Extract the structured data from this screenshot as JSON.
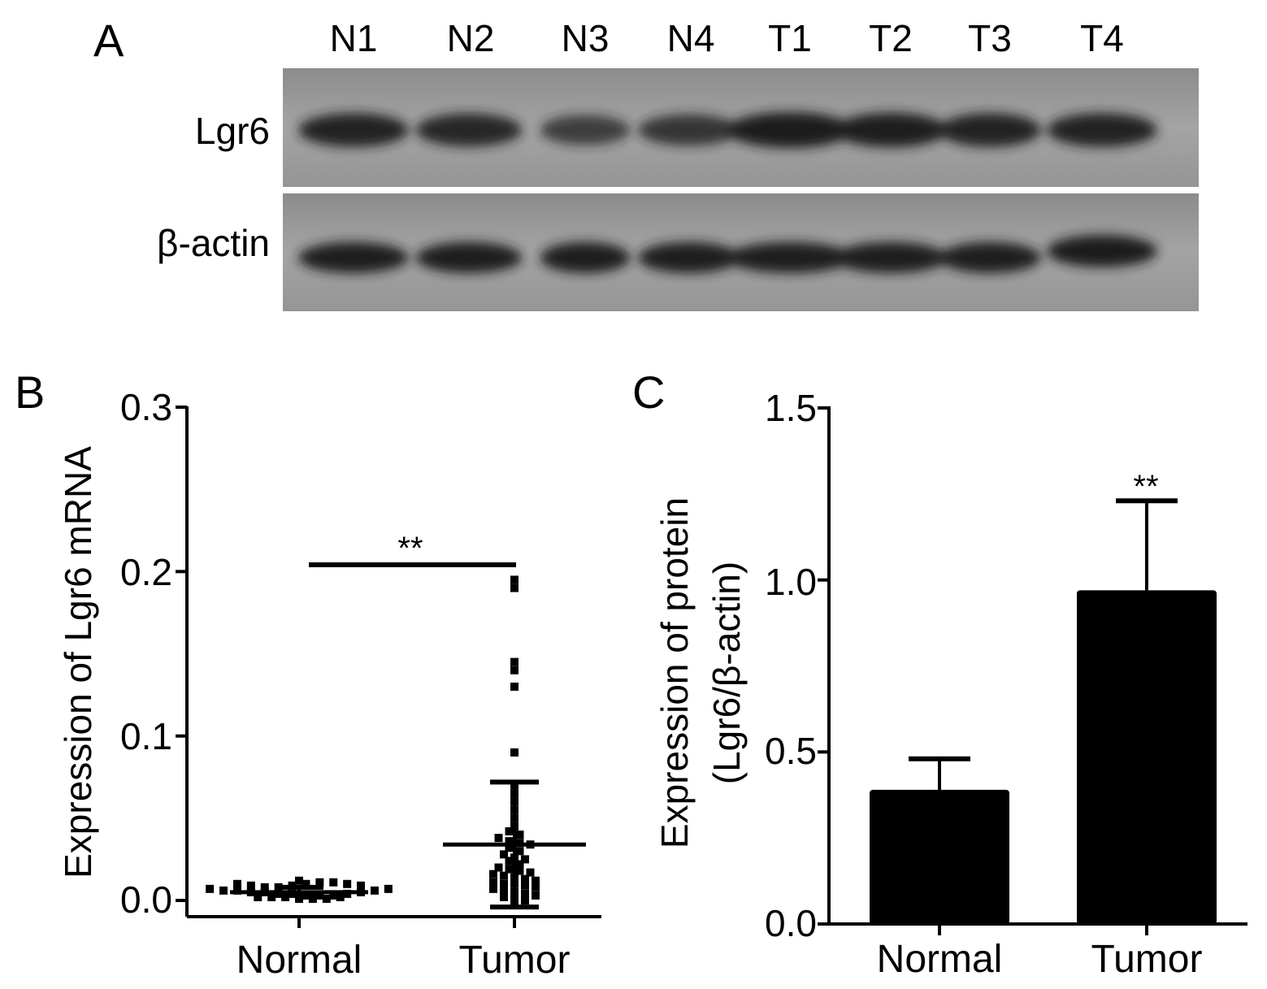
{
  "panel_a": {
    "letter": "A",
    "lanes": [
      "N1",
      "N2",
      "N3",
      "N4",
      "T1",
      "T2",
      "T3",
      "T4"
    ],
    "rows": [
      {
        "label": "Lgr6",
        "band_intensity": [
          0.85,
          0.8,
          0.55,
          0.65,
          1.0,
          0.9,
          0.85,
          0.85
        ]
      },
      {
        "label": "β-actin",
        "band_intensity": [
          0.9,
          0.9,
          0.9,
          0.9,
          0.9,
          0.9,
          0.9,
          1.0
        ]
      }
    ],
    "colors": {
      "membrane": "#9a9a9a",
      "band": "#1e1e1e"
    }
  },
  "panel_b": {
    "letter": "B",
    "significance": "**"
  },
  "panel_c": {
    "letter": "C",
    "significance": "**"
  },
  "chart_data": [
    {
      "type": "scatter",
      "panel": "B",
      "ylabel": "Expression of Lgr6 mRNA",
      "categories": [
        "Normal",
        "Tumor"
      ],
      "ylim": [
        0.0,
        0.3
      ],
      "yticks": [
        "0.0",
        "0.1",
        "0.2",
        "0.3"
      ],
      "groups": [
        {
          "name": "Normal",
          "mean": 0.005,
          "sd_low": 0.004,
          "sd_high": 0.008,
          "points": [
            0.01,
            0.009,
            0.008,
            0.007,
            0.006,
            0.006,
            0.005,
            0.005,
            0.004,
            0.004,
            0.003,
            0.003,
            0.002,
            0.002,
            0.002,
            0.001,
            0.001,
            0.001,
            0.002,
            0.003,
            0.004,
            0.005,
            0.006,
            0.007,
            0.008,
            0.009,
            0.01,
            0.011,
            0.012,
            0.011,
            0.01,
            0.009
          ]
        },
        {
          "name": "Tumor",
          "mean": 0.034,
          "sd_low": -0.004,
          "sd_high": 0.072,
          "points": [
            0.195,
            0.19,
            0.145,
            0.14,
            0.13,
            0.09,
            0.07,
            0.065,
            0.06,
            0.055,
            0.05,
            0.045,
            0.042,
            0.04,
            0.038,
            0.036,
            0.035,
            0.034,
            0.032,
            0.03,
            0.028,
            0.026,
            0.025,
            0.024,
            0.022,
            0.02,
            0.019,
            0.018,
            0.017,
            0.016,
            0.015,
            0.014,
            0.013,
            0.012,
            0.011,
            0.01,
            0.01,
            0.009,
            0.008,
            0.007,
            0.006,
            0.005,
            0.004,
            0.003,
            0.002,
            0.001,
            0.0,
            -0.002
          ]
        }
      ],
      "colors": {
        "marks": "#000000"
      }
    },
    {
      "type": "bar",
      "panel": "C",
      "ylabel_lines": [
        "Expression of protein",
        "(Lgr6/β-actin)"
      ],
      "categories": [
        "Normal",
        "Tumor"
      ],
      "values": [
        0.39,
        0.97
      ],
      "errors": [
        0.09,
        0.26
      ],
      "ylim": [
        0.0,
        1.5
      ],
      "yticks": [
        "0.0",
        "0.5",
        "1.0",
        "1.5"
      ],
      "colors": {
        "bars": "#000000"
      }
    }
  ]
}
